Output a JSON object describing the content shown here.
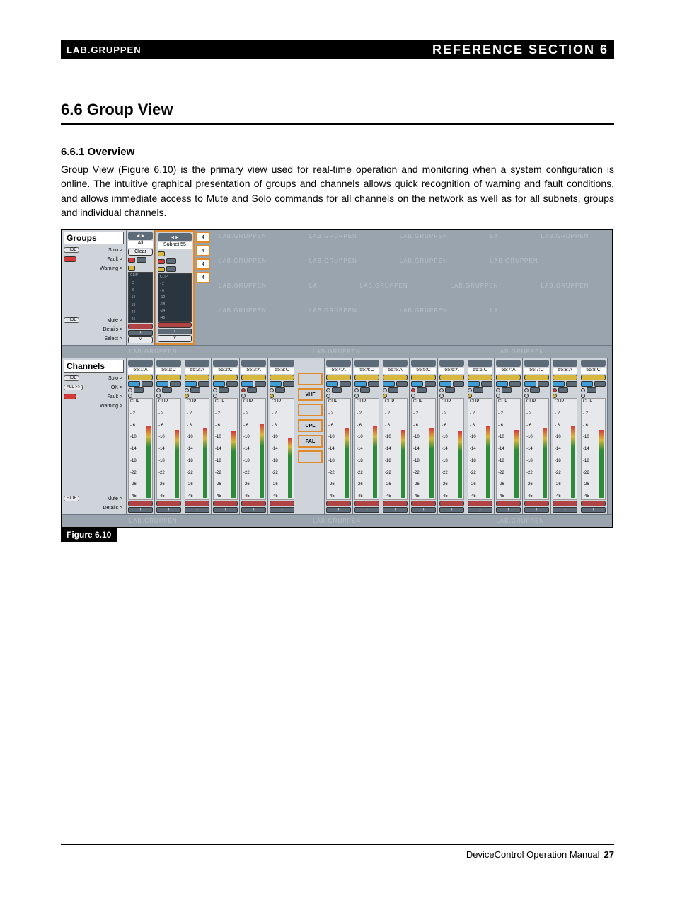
{
  "header": {
    "logo": "LAB.GRUPPEN",
    "title": "REFERENCE SECTION  6"
  },
  "section": {
    "heading": "6.6  Group View",
    "sub": "6.6.1  Overview",
    "body": "Group View (Figure 6.10) is the primary view used for real-time operation and monitoring when a system configuration is online. The intuitive graphical presentation of groups and channels allows quick recognition of warning and fault conditions, and allows immediate access to Mute and Solo commands for all channels on the network as well as for all subnets, groups and individual channels."
  },
  "figure_caption": "Figure 6.10",
  "footer": {
    "text": "DeviceControl Operation Manual",
    "page": "27"
  },
  "groups_panel": {
    "title": "Groups",
    "controls": [
      "HIDE",
      "Solo >",
      "Fault >",
      "Warning >",
      "",
      "HIDE",
      "Mute >",
      "Details >",
      "Select >"
    ],
    "leds": {
      "fault_color": "#d53838"
    },
    "strips": [
      {
        "hdr": "",
        "name": "All",
        "clear": "Clear",
        "meter_labels": [
          "CLIP",
          "- 2",
          "- 6",
          "-12",
          "-18",
          "-24",
          "-45"
        ]
      },
      {
        "hdr": "",
        "name": "Subnet 55",
        "subnet": true,
        "meter_labels": [
          "CLIP",
          "- 2",
          "- 6",
          "-12",
          "-18",
          "-24",
          "-45"
        ],
        "side_boxes": [
          "4",
          "4",
          "4",
          "4"
        ]
      }
    ],
    "watermark": "LAB.GRUPPEN"
  },
  "channels_panel": {
    "title": "Channels",
    "controls": [
      "HIDE",
      "Solo >",
      "ALL >>",
      "OK >",
      "Fault >",
      "Warning >",
      "",
      "HIDE",
      "Mute >",
      "Details >"
    ],
    "special_boxes": [
      "",
      "VHF",
      "",
      "CPL",
      "PAL",
      ""
    ],
    "meter_labels": [
      "CLIP",
      "- 2",
      "- 6",
      "-10",
      "-14",
      "-18",
      "-22",
      "-26",
      "-45"
    ],
    "channels": [
      {
        "name": "55:1:A",
        "bar": 72
      },
      {
        "name": "55:1:C",
        "bar": 68
      },
      {
        "name": "55:2:A",
        "bar": 70
      },
      {
        "name": "55:2:C",
        "bar": 66
      },
      {
        "name": "55:3:A",
        "bar": 74
      },
      {
        "name": "55:3:C",
        "bar": 60,
        "wide_after": true
      },
      {
        "name": "55:4:A",
        "bar": 70
      },
      {
        "name": "55:4:C",
        "bar": 72
      },
      {
        "name": "55:5:A",
        "bar": 68
      },
      {
        "name": "55:5:C",
        "bar": 70
      },
      {
        "name": "55:6:A",
        "bar": 66
      },
      {
        "name": "55:6:C",
        "bar": 72
      },
      {
        "name": "55:7:A",
        "bar": 68
      },
      {
        "name": "55:7:C",
        "bar": 70
      },
      {
        "name": "55:8:A",
        "bar": 72
      },
      {
        "name": "55:8:C",
        "bar": 68
      }
    ],
    "watermark": "LAB.GRUPPEN",
    "colors": {
      "solo": "#d7b83e",
      "ok": "#3e9ed7",
      "mute": "#b04343",
      "meter_top": "#d53838",
      "meter_mid": "#d7b83e",
      "meter_low": "#2e8b3a",
      "frame_hl": "#e08a2a",
      "panel_bg": "#cfd4da",
      "shot_bg": "#9aa4ae"
    }
  }
}
